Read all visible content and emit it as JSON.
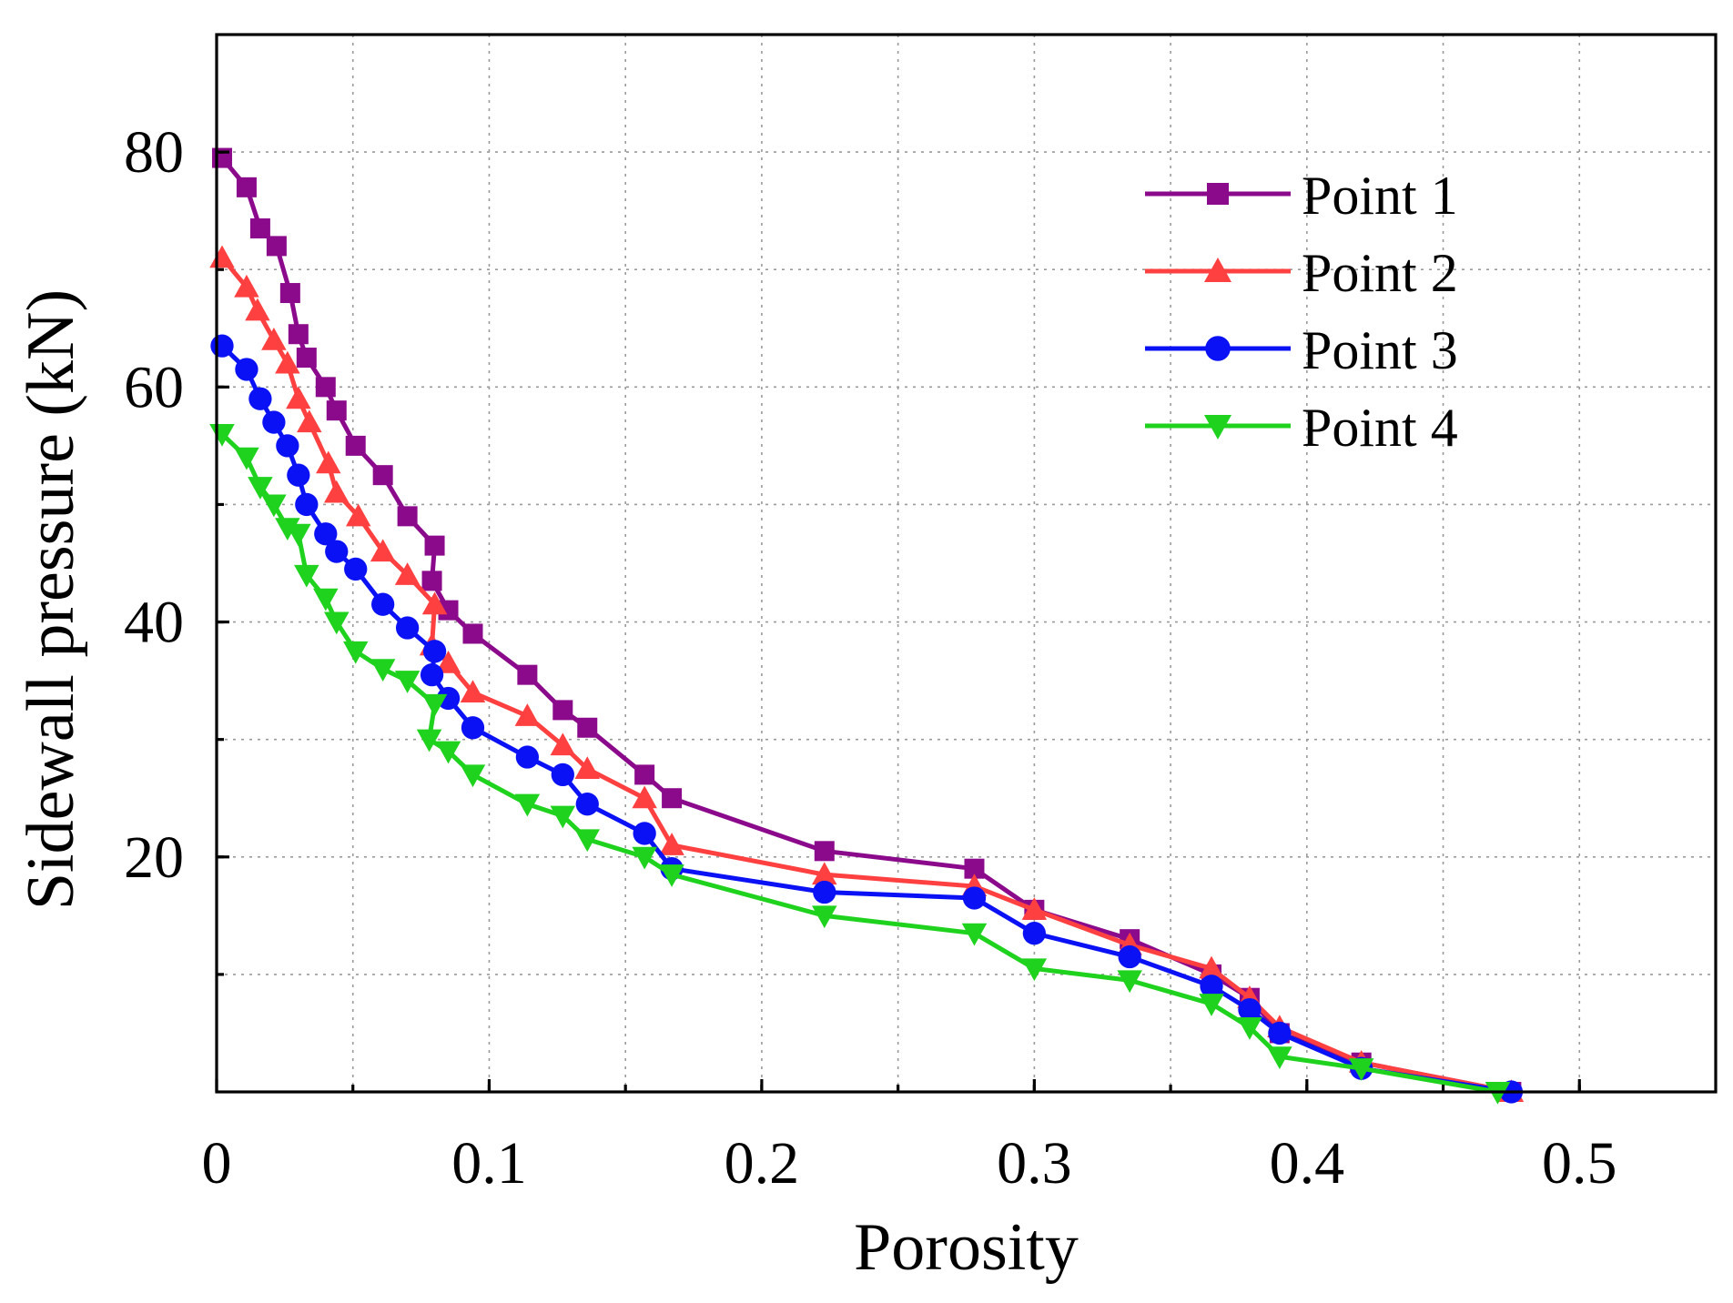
{
  "chart_data": {
    "type": "line",
    "title": "",
    "xlabel": "Porosity",
    "ylabel": "Sidewall pressure (kN)",
    "xlim": [
      0,
      0.55
    ],
    "ylim": [
      0,
      90
    ],
    "x_ticks": [
      0,
      0.1,
      0.2,
      0.3,
      0.4,
      0.5
    ],
    "x_tick_labels": [
      "0",
      "0.1",
      "0.2",
      "0.3",
      "0.4",
      "0.5"
    ],
    "y_ticks": [
      20,
      40,
      60,
      80
    ],
    "y_tick_labels": [
      "20",
      "40",
      "60",
      "80"
    ],
    "x_grid": [
      0.05,
      0.1,
      0.15,
      0.2,
      0.25,
      0.3,
      0.35,
      0.4,
      0.45,
      0.5
    ],
    "y_grid": [
      10,
      20,
      30,
      40,
      50,
      60,
      70,
      80
    ],
    "grid": true,
    "legend_position": "top-right",
    "series": [
      {
        "name": "Point 1",
        "color": "#8B0A8B",
        "marker": "square",
        "x": [
          0.002,
          0.011,
          0.016,
          0.022,
          0.027,
          0.03,
          0.033,
          0.04,
          0.044,
          0.051,
          0.061,
          0.07,
          0.08,
          0.079,
          0.085,
          0.094,
          0.114,
          0.127,
          0.136,
          0.157,
          0.167,
          0.223,
          0.278,
          0.3,
          0.335,
          0.365,
          0.379,
          0.39,
          0.42,
          0.475
        ],
        "y": [
          79.5,
          77.0,
          73.5,
          72.0,
          68.0,
          64.5,
          62.5,
          60.0,
          58.0,
          55.0,
          52.5,
          49.0,
          46.5,
          43.5,
          41.0,
          39.0,
          35.5,
          32.5,
          31.0,
          27.0,
          25.0,
          20.5,
          19.0,
          15.5,
          13.0,
          10.0,
          8.0,
          5.0,
          2.5,
          0.0
        ]
      },
      {
        "name": "Point 2",
        "color": "#FF4040",
        "marker": "triangle-up",
        "x": [
          0.002,
          0.011,
          0.015,
          0.021,
          0.026,
          0.03,
          0.034,
          0.041,
          0.044,
          0.052,
          0.061,
          0.07,
          0.08,
          0.079,
          0.085,
          0.094,
          0.114,
          0.127,
          0.136,
          0.157,
          0.167,
          0.223,
          0.278,
          0.3,
          0.335,
          0.365,
          0.379,
          0.39,
          0.42,
          0.475
        ],
        "y": [
          71.0,
          68.5,
          66.5,
          64.0,
          62.0,
          59.0,
          57.0,
          53.5,
          51.0,
          49.0,
          46.0,
          44.0,
          41.5,
          38.0,
          36.5,
          34.0,
          32.0,
          29.5,
          27.5,
          25.0,
          21.0,
          18.5,
          17.5,
          15.5,
          12.5,
          10.5,
          8.0,
          5.5,
          2.5,
          0.0
        ]
      },
      {
        "name": "Point 3",
        "color": "#0A12F5",
        "marker": "circle",
        "x": [
          0.002,
          0.011,
          0.016,
          0.021,
          0.026,
          0.03,
          0.033,
          0.04,
          0.044,
          0.051,
          0.061,
          0.07,
          0.08,
          0.079,
          0.085,
          0.094,
          0.114,
          0.127,
          0.136,
          0.157,
          0.167,
          0.223,
          0.278,
          0.3,
          0.335,
          0.365,
          0.379,
          0.39,
          0.42,
          0.475
        ],
        "y": [
          63.5,
          61.5,
          59.0,
          57.0,
          55.0,
          52.5,
          50.0,
          47.5,
          46.0,
          44.5,
          41.5,
          39.5,
          37.5,
          35.5,
          33.5,
          31.0,
          28.5,
          27.0,
          24.5,
          22.0,
          19.0,
          17.0,
          16.5,
          13.5,
          11.5,
          9.0,
          7.0,
          5.0,
          2.0,
          0.0
        ]
      },
      {
        "name": "Point 4",
        "color": "#1ED21E",
        "marker": "triangle-down",
        "x": [
          0.002,
          0.011,
          0.016,
          0.021,
          0.026,
          0.03,
          0.033,
          0.04,
          0.044,
          0.051,
          0.061,
          0.07,
          0.08,
          0.078,
          0.085,
          0.094,
          0.114,
          0.127,
          0.136,
          0.157,
          0.167,
          0.223,
          0.278,
          0.3,
          0.335,
          0.365,
          0.379,
          0.39,
          0.42,
          0.47
        ],
        "y": [
          56.0,
          54.0,
          51.5,
          50.0,
          48.0,
          47.5,
          44.0,
          42.0,
          40.0,
          37.5,
          36.0,
          35.0,
          33.0,
          30.0,
          29.0,
          27.0,
          24.5,
          23.5,
          21.5,
          20.0,
          18.5,
          15.0,
          13.5,
          10.5,
          9.5,
          7.5,
          5.5,
          3.0,
          2.0,
          0.0
        ]
      }
    ]
  }
}
